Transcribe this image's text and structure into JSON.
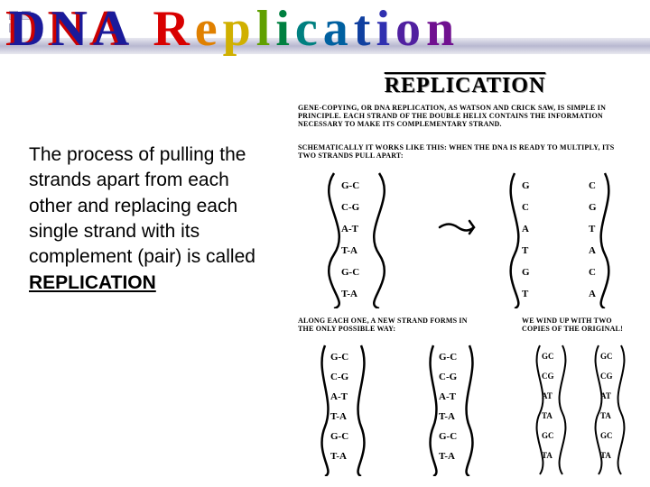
{
  "title": {
    "dna": "DNA",
    "rep_letters": [
      {
        "char": "R",
        "color": "#d80000"
      },
      {
        "char": "e",
        "color": "#e08000"
      },
      {
        "char": "p",
        "color": "#d0b000"
      },
      {
        "char": "l",
        "color": "#60a000"
      },
      {
        "char": "i",
        "color": "#008040"
      },
      {
        "char": "c",
        "color": "#008080"
      },
      {
        "char": "a",
        "color": "#0060a0"
      },
      {
        "char": "t",
        "color": "#1040a0"
      },
      {
        "char": "i",
        "color": "#3030b0"
      },
      {
        "char": "o",
        "color": "#5020a0"
      },
      {
        "char": "n",
        "color": "#701090"
      }
    ]
  },
  "body": {
    "text_before": "The process of pulling the strands apart from each other and replacing each single strand with its complement (pair) is called ",
    "emph": "REPLICATION"
  },
  "diagram": {
    "heading": "REPLICATION",
    "cap1": "Gene-copying, or DNA replication, as Watson and Crick saw, is simple in principle. Each strand of the double helix contains the information necessary to make its complementary strand.",
    "cap2": "Schematically it works like this: when the DNA is ready to multiply, its two strands pull apart:",
    "cap3": "Along each one, a new strand forms in the only possible way:",
    "cap4": "We wind up with two copies of the original!",
    "bases_left_helix": [
      "G-C",
      "C-G",
      "A-T",
      "T-A",
      "G-C",
      "T-A"
    ],
    "arrow": "⇒",
    "strand_left": [
      "G",
      "C",
      "A",
      "T",
      "G",
      "T"
    ],
    "strand_right": [
      "C",
      "G",
      "T",
      "A",
      "C",
      "A"
    ],
    "panel3_pairs_a": [
      "G-C",
      "C-G",
      "A-T",
      "T-A",
      "G-C",
      "T-A"
    ],
    "panel3_pairs_b": [
      "G-C",
      "C-G",
      "A-T",
      "T-A",
      "G-C",
      "T-A"
    ],
    "bases_final_a": [
      "GC",
      "CG",
      "AT",
      "TA",
      "GC",
      "TA"
    ]
  },
  "colors": {
    "title_bar": "#c8c8d8",
    "background": "#ffffff",
    "text": "#000000"
  }
}
